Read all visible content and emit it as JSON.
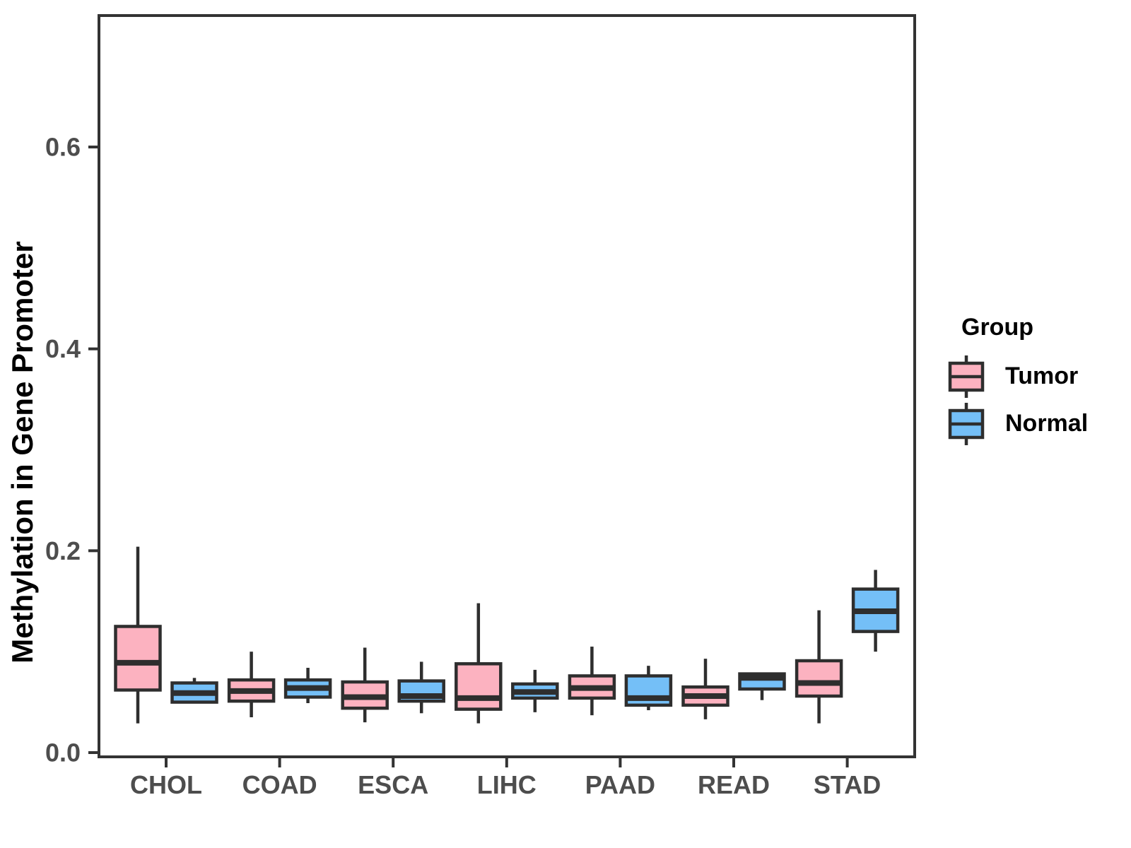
{
  "chart_data": {
    "type": "boxplot",
    "title": "",
    "xlabel": "",
    "ylabel": "Methylation in Gene Promoter",
    "grid": "off",
    "panel_background": "#FFFFFF",
    "categories": [
      "CHOL",
      "COAD",
      "ESCA",
      "LIHC",
      "PAAD",
      "READ",
      "STAD"
    ],
    "y_axis": {
      "range": [
        0,
        0.73
      ],
      "ticks": [
        {
          "value": 0.0,
          "label": "0.0"
        },
        {
          "value": 0.2,
          "label": "0.2"
        },
        {
          "value": 0.4,
          "label": "0.4"
        },
        {
          "value": 0.6,
          "label": "0.6"
        }
      ]
    },
    "colors": {
      "tumor_fill": "#FCB2C0",
      "normal_fill": "#74BFF7",
      "box_stroke": "#2E2E2E",
      "axis_stroke": "#333333",
      "tick_label": "#4D4D4D"
    },
    "series": [
      {
        "name": "Tumor",
        "color": "#FCB2C0",
        "boxes": [
          {
            "low": 0.029,
            "q1": 0.062,
            "median": 0.089,
            "q3": 0.125,
            "high": 0.204
          },
          {
            "low": 0.035,
            "q1": 0.051,
            "median": 0.061,
            "q3": 0.072,
            "high": 0.1
          },
          {
            "low": 0.03,
            "q1": 0.044,
            "median": 0.055,
            "q3": 0.07,
            "high": 0.104
          },
          {
            "low": 0.029,
            "q1": 0.043,
            "median": 0.054,
            "q3": 0.088,
            "high": 0.148
          },
          {
            "low": 0.037,
            "q1": 0.054,
            "median": 0.064,
            "q3": 0.076,
            "high": 0.105
          },
          {
            "low": 0.033,
            "q1": 0.047,
            "median": 0.056,
            "q3": 0.065,
            "high": 0.093
          },
          {
            "low": 0.029,
            "q1": 0.056,
            "median": 0.069,
            "q3": 0.091,
            "high": 0.141
          }
        ]
      },
      {
        "name": "Normal",
        "color": "#74BFF7",
        "boxes": [
          {
            "low": 0.05,
            "q1": 0.05,
            "median": 0.059,
            "q3": 0.069,
            "high": 0.074
          },
          {
            "low": 0.049,
            "q1": 0.055,
            "median": 0.064,
            "q3": 0.072,
            "high": 0.084
          },
          {
            "low": 0.039,
            "q1": 0.051,
            "median": 0.056,
            "q3": 0.071,
            "high": 0.09
          },
          {
            "low": 0.04,
            "q1": 0.054,
            "median": 0.06,
            "q3": 0.068,
            "high": 0.082
          },
          {
            "low": 0.042,
            "q1": 0.047,
            "median": 0.054,
            "q3": 0.076,
            "high": 0.086
          },
          {
            "low": 0.052,
            "q1": 0.063,
            "median": 0.074,
            "q3": 0.078,
            "high": 0.078
          },
          {
            "low": 0.1,
            "q1": 0.12,
            "median": 0.14,
            "q3": 0.162,
            "high": 0.181
          }
        ]
      }
    ],
    "legend": {
      "title": "Group",
      "position": "right",
      "entries": [
        {
          "label": "Tumor",
          "color": "#FCB2C0"
        },
        {
          "label": "Normal",
          "color": "#74BFF7"
        }
      ]
    }
  }
}
